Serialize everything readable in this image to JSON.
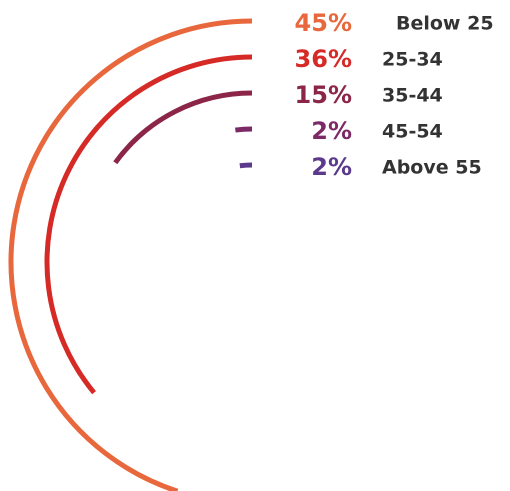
{
  "chart_data": {
    "type": "radial_bar",
    "categories": [
      "Below 25",
      "25-34",
      "35-44",
      "45-54",
      "Above 55"
    ],
    "values": [
      45,
      36,
      15,
      2,
      2
    ],
    "value_labels": [
      "45%",
      "36%",
      "15%",
      "2%",
      "2%"
    ],
    "colors": [
      "#e8673c",
      "#d62a27",
      "#8b2648",
      "#7b2a66",
      "#5b3a8c"
    ],
    "max": 100
  }
}
